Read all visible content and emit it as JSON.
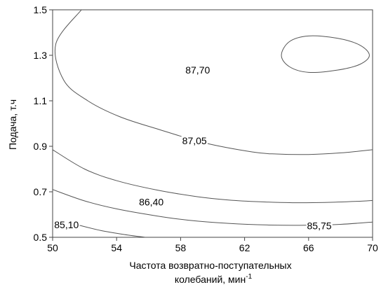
{
  "chart_data": {
    "type": "contour",
    "title": "",
    "xlabel_line1": "Частота возвратно-поступательных",
    "xlabel_line2": "колебаний, мин",
    "xlabel_sup": "-1",
    "ylabel": "Подача, т.ч",
    "xlim": [
      50,
      70
    ],
    "ylim": [
      0.5,
      1.5
    ],
    "x_ticks": [
      "50",
      "54",
      "58",
      "62",
      "66",
      "70"
    ],
    "y_ticks": [
      "0.5",
      "0.7",
      "0.9",
      "1.1",
      "1.3",
      "1.5"
    ],
    "grid": false,
    "line_color": "#555555",
    "contours": [
      {
        "level": "87,70",
        "label_at": [
          58.3,
          1.22
        ],
        "closed": true,
        "points": [
          [
            64.3,
            1.3
          ],
          [
            64.8,
            1.25
          ],
          [
            66.0,
            1.225
          ],
          [
            67.8,
            1.235
          ],
          [
            69.2,
            1.26
          ],
          [
            69.8,
            1.3
          ],
          [
            69.2,
            1.345
          ],
          [
            67.8,
            1.375
          ],
          [
            66.0,
            1.385
          ],
          [
            64.8,
            1.36
          ]
        ]
      },
      {
        "level": "87,05",
        "label_at": [
          58.1,
          0.91
        ],
        "closed": false,
        "points": [
          [
            51.8,
            1.5
          ],
          [
            50.2,
            1.35
          ],
          [
            50.7,
            1.19
          ],
          [
            52.2,
            1.1
          ],
          [
            54.2,
            1.03
          ],
          [
            56.6,
            0.975
          ],
          [
            59.5,
            0.915
          ],
          [
            62.5,
            0.875
          ],
          [
            64.0,
            0.866
          ],
          [
            66.0,
            0.864
          ],
          [
            68.0,
            0.871
          ],
          [
            70.0,
            0.885
          ]
        ]
      },
      {
        "level": "86,40",
        "label_at": [
          55.4,
          0.64
        ],
        "closed": false,
        "points": [
          [
            50.0,
            0.885
          ],
          [
            52.0,
            0.8
          ],
          [
            54.0,
            0.749
          ],
          [
            56.5,
            0.708
          ],
          [
            59.0,
            0.679
          ],
          [
            61.0,
            0.664
          ],
          [
            63.0,
            0.656
          ],
          [
            65.0,
            0.652
          ],
          [
            67.0,
            0.653
          ],
          [
            69.0,
            0.658
          ],
          [
            70.0,
            0.662
          ]
        ]
      },
      {
        "level": "85,75",
        "label_at": [
          65.9,
          0.535
        ],
        "closed": false,
        "points": [
          [
            50.0,
            0.71
          ],
          [
            52.0,
            0.66
          ],
          [
            54.0,
            0.625
          ],
          [
            56.5,
            0.594
          ],
          [
            58.5,
            0.575
          ],
          [
            61.0,
            0.561
          ],
          [
            63.5,
            0.554
          ],
          [
            65.8,
            0.553
          ],
          [
            68.0,
            0.557
          ],
          [
            70.0,
            0.567
          ]
        ]
      },
      {
        "level": "85,10",
        "label_at": [
          50.1,
          0.54
        ],
        "closed": false,
        "points": [
          [
            51.5,
            0.556
          ],
          [
            53.0,
            0.53
          ],
          [
            54.5,
            0.512
          ],
          [
            55.8,
            0.5
          ]
        ]
      }
    ]
  }
}
